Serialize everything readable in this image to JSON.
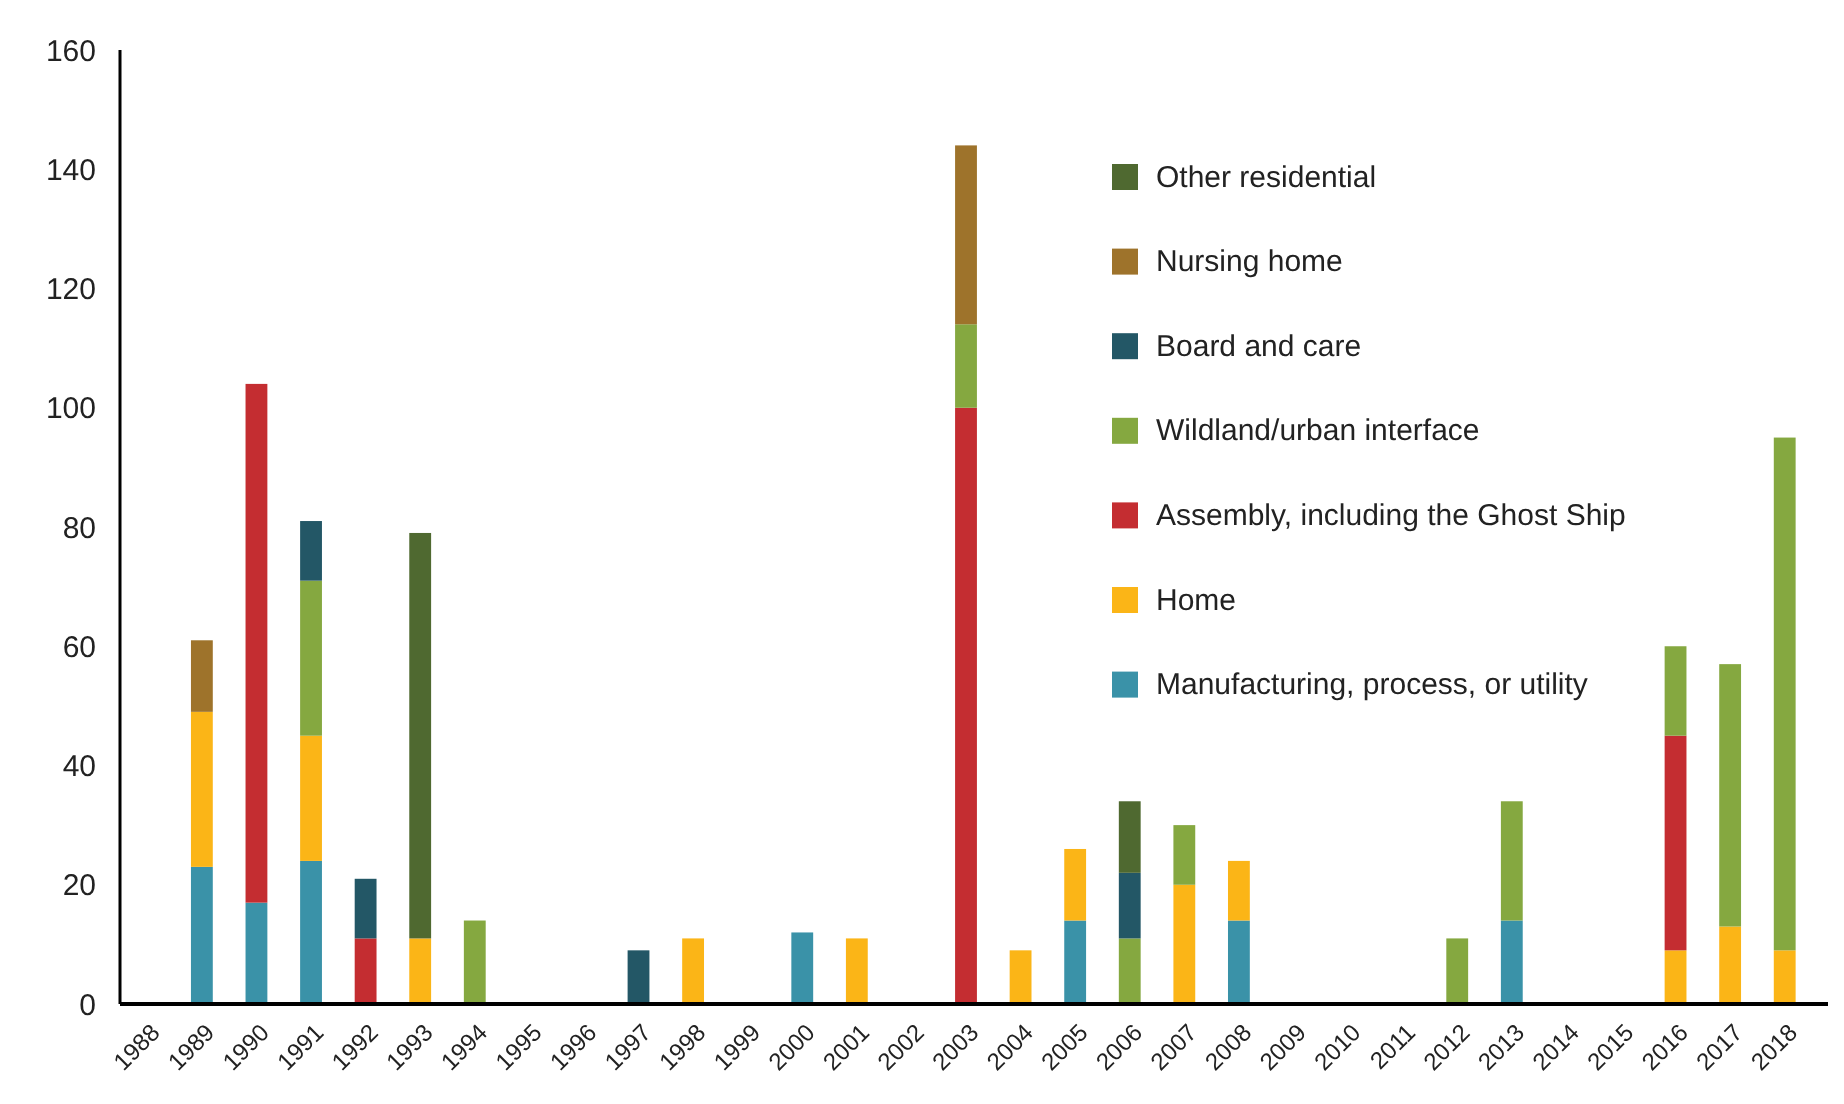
{
  "chart_data": {
    "type": "bar",
    "stacked": true,
    "legend": "top right",
    "categories": [
      "1988",
      "1989",
      "1990",
      "1991",
      "1992",
      "1993",
      "1994",
      "1995",
      "1996",
      "1997",
      "1998",
      "1999",
      "2000",
      "2001",
      "2002",
      "2003",
      "2004",
      "2005",
      "2006",
      "2007",
      "2008",
      "2009",
      "2010",
      "2011",
      "2012",
      "2013",
      "2014",
      "2015",
      "2016",
      "2017",
      "2018"
    ],
    "ylim": [
      0,
      160
    ],
    "yticks": [
      0,
      20,
      40,
      60,
      80,
      100,
      120,
      140,
      160
    ],
    "grid": false,
    "series": [
      {
        "name": "Manufacturing, process, or utility",
        "color": "#3a92a8",
        "values": [
          0,
          23,
          17,
          24,
          0,
          0,
          0,
          0,
          0,
          0,
          0,
          0,
          12,
          0,
          0,
          0,
          0,
          14,
          0,
          0,
          14,
          0,
          0,
          0,
          0,
          14,
          0,
          0,
          0,
          0,
          0
        ]
      },
      {
        "name": "Home",
        "color": "#fbb517",
        "values": [
          0,
          26,
          0,
          21,
          0,
          11,
          0,
          0,
          0,
          0,
          11,
          0,
          0,
          11,
          0,
          0,
          9,
          12,
          0,
          20,
          10,
          0,
          0,
          0,
          0,
          0,
          0,
          0,
          9,
          13,
          9
        ]
      },
      {
        "name": "Assembly, including the Ghost Ship",
        "color": "#c42d31",
        "values": [
          0,
          0,
          87,
          0,
          11,
          0,
          0,
          0,
          0,
          0,
          0,
          0,
          0,
          0,
          0,
          100,
          0,
          0,
          0,
          0,
          0,
          0,
          0,
          0,
          0,
          0,
          0,
          0,
          36,
          0,
          0
        ]
      },
      {
        "name": "Wildland/urban interface",
        "color": "#85a840",
        "values": [
          0,
          0,
          0,
          26,
          0,
          0,
          14,
          0,
          0,
          0,
          0,
          0,
          0,
          0,
          0,
          14,
          0,
          0,
          11,
          10,
          0,
          0,
          0,
          0,
          11,
          20,
          0,
          0,
          15,
          44,
          86
        ]
      },
      {
        "name": "Board and care",
        "color": "#235766",
        "values": [
          0,
          0,
          0,
          10,
          10,
          0,
          0,
          0,
          0,
          9,
          0,
          0,
          0,
          0,
          0,
          0,
          0,
          0,
          11,
          0,
          0,
          0,
          0,
          0,
          0,
          0,
          0,
          0,
          0,
          0,
          0
        ]
      },
      {
        "name": "Nursing home",
        "color": "#9e732b",
        "values": [
          0,
          12,
          0,
          0,
          0,
          0,
          0,
          0,
          0,
          0,
          0,
          0,
          0,
          0,
          0,
          30,
          0,
          0,
          0,
          0,
          0,
          0,
          0,
          0,
          0,
          0,
          0,
          0,
          0,
          0,
          0
        ]
      },
      {
        "name": "Other residential",
        "color": "#4f6930",
        "values": [
          0,
          0,
          0,
          0,
          0,
          68,
          0,
          0,
          0,
          0,
          0,
          0,
          0,
          0,
          0,
          0,
          0,
          0,
          12,
          0,
          0,
          0,
          0,
          0,
          0,
          0,
          0,
          0,
          0,
          0,
          0
        ]
      }
    ]
  }
}
